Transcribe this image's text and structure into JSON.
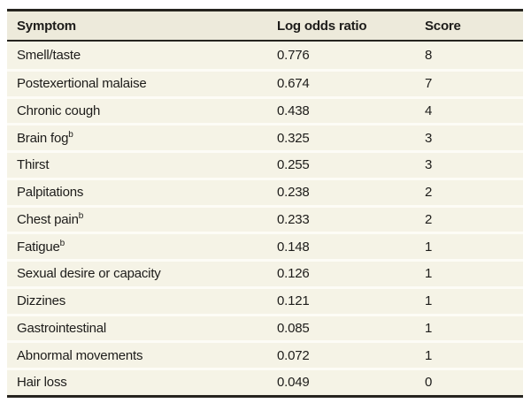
{
  "table": {
    "columns": [
      {
        "label": "Symptom"
      },
      {
        "label": "Log odds ratio"
      },
      {
        "label": "Score"
      }
    ],
    "rows": [
      {
        "symptom": "Smell/taste",
        "sup": "",
        "log_odds": "0.776",
        "score": "8"
      },
      {
        "symptom": "Postexertional malaise",
        "sup": "",
        "log_odds": "0.674",
        "score": "7"
      },
      {
        "symptom": "Chronic cough",
        "sup": "",
        "log_odds": "0.438",
        "score": "4"
      },
      {
        "symptom": "Brain fog",
        "sup": "b",
        "log_odds": "0.325",
        "score": "3"
      },
      {
        "symptom": "Thirst",
        "sup": "",
        "log_odds": "0.255",
        "score": "3"
      },
      {
        "symptom": "Palpitations",
        "sup": "",
        "log_odds": "0.238",
        "score": "2"
      },
      {
        "symptom": "Chest pain",
        "sup": "b",
        "log_odds": "0.233",
        "score": "2"
      },
      {
        "symptom": "Fatigue",
        "sup": "b",
        "log_odds": "0.148",
        "score": "1"
      },
      {
        "symptom": "Sexual desire or capacity",
        "sup": "",
        "log_odds": "0.126",
        "score": "1"
      },
      {
        "symptom": "Dizzines",
        "sup": "",
        "log_odds": "0.121",
        "score": "1"
      },
      {
        "symptom": "Gastrointestinal",
        "sup": "",
        "log_odds": "0.085",
        "score": "1"
      },
      {
        "symptom": "Abnormal movements",
        "sup": "",
        "log_odds": "0.072",
        "score": "1"
      },
      {
        "symptom": "Hair loss",
        "sup": "",
        "log_odds": "0.049",
        "score": "0"
      }
    ],
    "colors": {
      "header_bg": "#edeadb",
      "row_bg": "#f5f3e6",
      "rule_dark": "#26241f",
      "row_separator": "#fdfcf6",
      "text": "#1d1c1a"
    }
  }
}
